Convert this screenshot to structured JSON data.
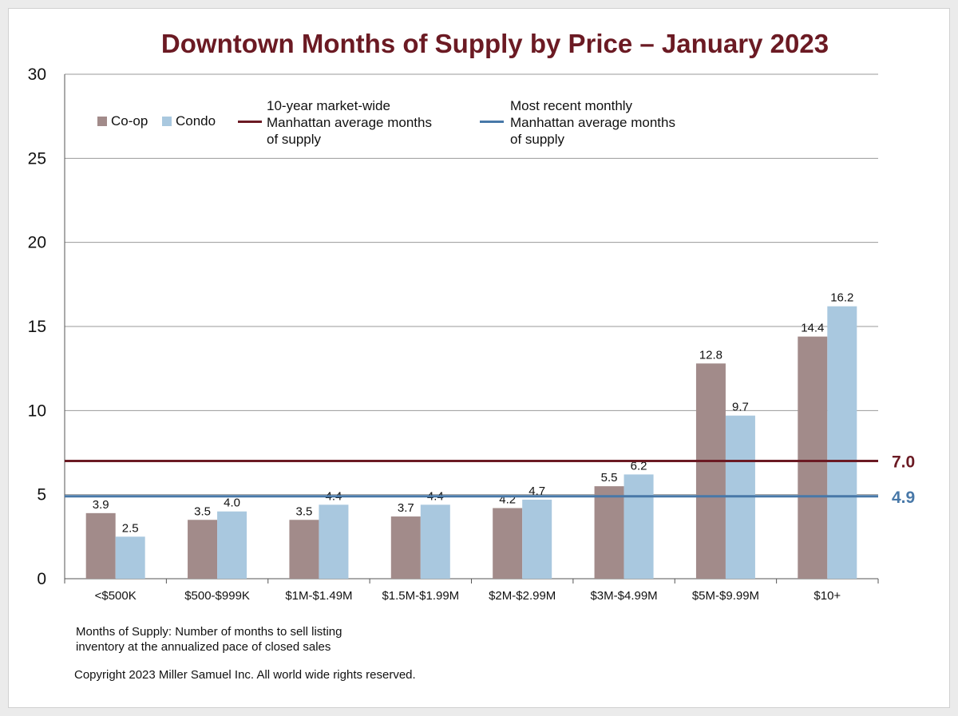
{
  "chart_data": {
    "type": "bar",
    "title": "Downtown Months of Supply by Price – January 2023",
    "categories": [
      "<$500K",
      "$500-$999K",
      "$1M-$1.49M",
      "$1.5M-$1.99M",
      "$2M-$2.99M",
      "$3M-$4.99M",
      "$5M-$9.99M",
      "$10+"
    ],
    "series": [
      {
        "name": "Co-op",
        "color": "#a28b8a",
        "values": [
          3.9,
          3.5,
          3.5,
          3.7,
          4.2,
          5.5,
          12.8,
          14.4
        ],
        "labels": [
          "3.9",
          "3.5",
          "3.5",
          "3.7",
          "4.2",
          "5.5",
          "12.8",
          "14.4"
        ]
      },
      {
        "name": "Condo",
        "color": "#a9c8df",
        "values": [
          2.5,
          4.0,
          4.4,
          4.4,
          4.7,
          6.2,
          9.7,
          16.2
        ],
        "labels": [
          "2.5",
          "4.0",
          "4.4",
          "4.4",
          "4.7",
          "6.2",
          "9.7",
          "16.2"
        ]
      }
    ],
    "reference_lines": [
      {
        "name": "10-year market-wide Manhattan average months of supply",
        "legend_lines": [
          "10-year market-wide",
          "Manhattan average months",
          "of supply"
        ],
        "value": 7.0,
        "label": "7.0",
        "color": "#6b1a23"
      },
      {
        "name": "Most recent monthly Manhattan average months of supply",
        "legend_lines": [
          "Most recent monthly",
          "Manhattan average months",
          "of supply"
        ],
        "value": 4.9,
        "label": "4.9",
        "color": "#4878a8"
      }
    ],
    "ylim": [
      0,
      30
    ],
    "yticks": [
      "0",
      "5",
      "10",
      "15",
      "20",
      "25",
      "30"
    ],
    "grid": true,
    "legend_position": "top"
  },
  "notes": {
    "definition_line1": "Months of Supply: Number of months to sell listing",
    "definition_line2": "inventory at the annualized pace of closed sales",
    "copyright": "Copyright 2023 Miller Samuel Inc.  All world wide rights reserved."
  }
}
